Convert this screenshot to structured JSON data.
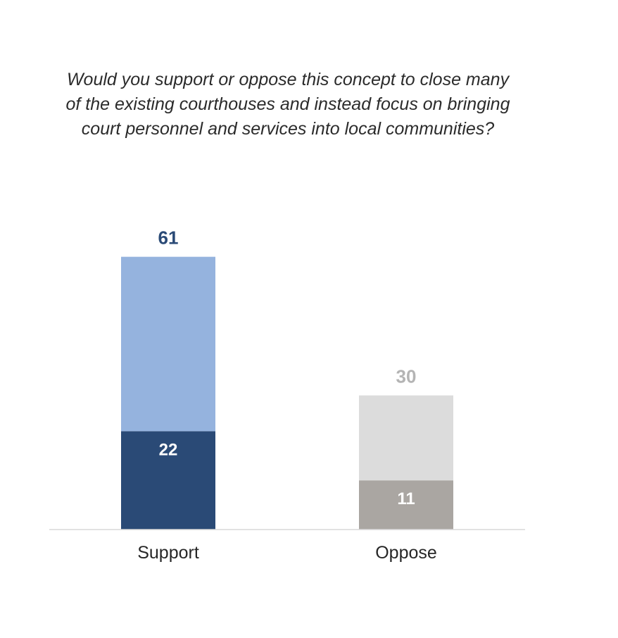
{
  "chart_data": {
    "type": "bar",
    "stacked": true,
    "title": "Would you support or oppose this concept to close many\nof the existing courthouses and instead focus on bringing\ncourt personnel and services into local communities?",
    "categories": [
      "Support",
      "Oppose"
    ],
    "totals": [
      61,
      30
    ],
    "series": [
      {
        "values": [
          22,
          11
        ],
        "colors": [
          "#2a4a76",
          "#aaa6a2"
        ],
        "label_color": "#ffffff"
      },
      {
        "values": [
          39,
          19
        ],
        "colors": [
          "#95b3de",
          "#dcdcdc"
        ],
        "show_labels": false
      }
    ],
    "total_label_colors": [
      "#2a4a76",
      "#b4b4b4"
    ],
    "ylim": [
      0,
      66
    ],
    "grid": false,
    "legend": "none"
  }
}
